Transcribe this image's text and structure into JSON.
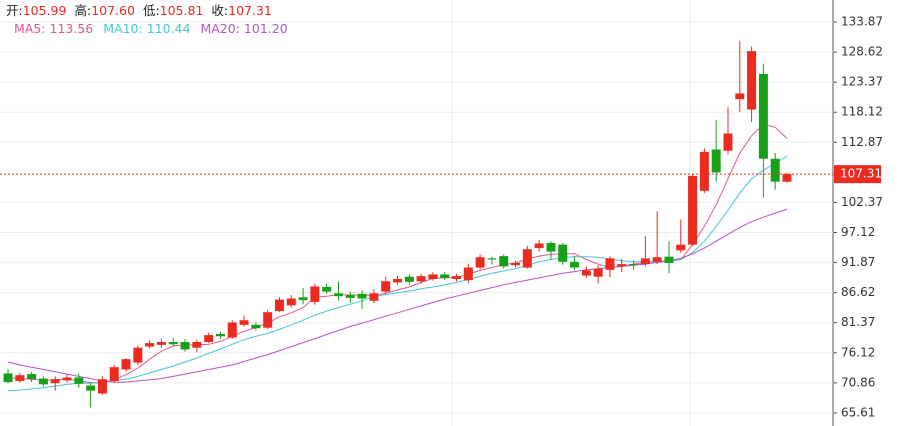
{
  "header": {
    "ohlc": [
      {
        "label": "开:",
        "value": "105.99"
      },
      {
        "label": "高:",
        "value": "107.60"
      },
      {
        "label": "低:",
        "value": "105.81"
      },
      {
        "label": "收:",
        "value": "107.31"
      }
    ],
    "ma": [
      {
        "label": "MA5:",
        "value": "113.56"
      },
      {
        "label": "MA10:",
        "value": "110.44"
      },
      {
        "label": "MA20:",
        "value": "101.20"
      }
    ]
  },
  "chart_data": {
    "type": "candlestick",
    "up_color": "#eb2a20",
    "down_color": "#18a018",
    "ylim": [
      63.33,
      137.72
    ],
    "yticks": [
      133.87,
      128.62,
      123.37,
      118.12,
      112.87,
      102.37,
      97.12,
      91.87,
      86.62,
      81.37,
      76.12,
      70.86,
      65.61
    ],
    "grid": true,
    "last_price": {
      "value": 107.31,
      "label": "107.31"
    },
    "candles": [
      {
        "open": 72.5,
        "high": 73.3,
        "low": 70.8,
        "close": 71.0
      },
      {
        "open": 71.2,
        "high": 72.6,
        "low": 70.9,
        "close": 72.2
      },
      {
        "open": 72.4,
        "high": 72.8,
        "low": 71.0,
        "close": 71.5
      },
      {
        "open": 71.6,
        "high": 72.0,
        "low": 70.2,
        "close": 70.6
      },
      {
        "open": 70.8,
        "high": 72.0,
        "low": 69.5,
        "close": 71.5
      },
      {
        "open": 71.3,
        "high": 72.3,
        "low": 70.9,
        "close": 71.8
      },
      {
        "open": 71.8,
        "high": 72.5,
        "low": 70.0,
        "close": 70.7
      },
      {
        "open": 70.4,
        "high": 70.8,
        "low": 66.6,
        "close": 69.5
      },
      {
        "open": 69.0,
        "high": 72.0,
        "low": 68.8,
        "close": 71.5
      },
      {
        "open": 71.2,
        "high": 74.0,
        "low": 70.8,
        "close": 73.6
      },
      {
        "open": 73.2,
        "high": 75.2,
        "low": 72.8,
        "close": 75.0
      },
      {
        "open": 74.4,
        "high": 77.4,
        "low": 74.0,
        "close": 77.0
      },
      {
        "open": 77.2,
        "high": 78.3,
        "low": 76.9,
        "close": 77.8
      },
      {
        "open": 77.5,
        "high": 78.6,
        "low": 77.0,
        "close": 78.0
      },
      {
        "open": 78.0,
        "high": 78.7,
        "low": 77.2,
        "close": 77.6
      },
      {
        "open": 78.0,
        "high": 78.5,
        "low": 76.3,
        "close": 76.7
      },
      {
        "open": 77.0,
        "high": 78.4,
        "low": 76.2,
        "close": 78.0
      },
      {
        "open": 78.0,
        "high": 79.6,
        "low": 77.8,
        "close": 79.2
      },
      {
        "open": 79.4,
        "high": 79.8,
        "low": 78.5,
        "close": 79.0
      },
      {
        "open": 78.8,
        "high": 81.8,
        "low": 78.5,
        "close": 81.4
      },
      {
        "open": 81.0,
        "high": 82.6,
        "low": 80.7,
        "close": 81.8
      },
      {
        "open": 81.0,
        "high": 81.4,
        "low": 80.0,
        "close": 80.4
      },
      {
        "open": 80.5,
        "high": 83.6,
        "low": 80.2,
        "close": 83.2
      },
      {
        "open": 83.4,
        "high": 85.8,
        "low": 83.2,
        "close": 85.4
      },
      {
        "open": 84.4,
        "high": 86.2,
        "low": 84.0,
        "close": 85.6
      },
      {
        "open": 85.8,
        "high": 87.4,
        "low": 84.6,
        "close": 85.3
      },
      {
        "open": 85.0,
        "high": 88.2,
        "low": 84.5,
        "close": 87.7
      },
      {
        "open": 87.6,
        "high": 88.2,
        "low": 86.4,
        "close": 86.8
      },
      {
        "open": 86.5,
        "high": 88.6,
        "low": 85.2,
        "close": 86.0
      },
      {
        "open": 86.2,
        "high": 86.8,
        "low": 84.8,
        "close": 85.7
      },
      {
        "open": 86.4,
        "high": 87.0,
        "low": 83.8,
        "close": 85.6
      },
      {
        "open": 85.2,
        "high": 87.2,
        "low": 84.8,
        "close": 86.5
      },
      {
        "open": 86.8,
        "high": 89.4,
        "low": 86.5,
        "close": 88.6
      },
      {
        "open": 88.4,
        "high": 89.6,
        "low": 88.0,
        "close": 89.0
      },
      {
        "open": 89.4,
        "high": 89.8,
        "low": 88.0,
        "close": 88.5
      },
      {
        "open": 88.6,
        "high": 89.9,
        "low": 88.2,
        "close": 89.5
      },
      {
        "open": 89.0,
        "high": 90.2,
        "low": 88.7,
        "close": 89.8
      },
      {
        "open": 89.8,
        "high": 90.2,
        "low": 88.8,
        "close": 89.2
      },
      {
        "open": 89.0,
        "high": 89.9,
        "low": 88.6,
        "close": 89.5
      },
      {
        "open": 88.8,
        "high": 91.6,
        "low": 88.3,
        "close": 91.0
      },
      {
        "open": 91.0,
        "high": 93.3,
        "low": 90.7,
        "close": 92.8
      },
      {
        "open": 92.6,
        "high": 92.9,
        "low": 91.5,
        "close": 92.4
      },
      {
        "open": 93.0,
        "high": 93.3,
        "low": 90.8,
        "close": 91.2
      },
      {
        "open": 91.4,
        "high": 92.2,
        "low": 91.0,
        "close": 91.8
      },
      {
        "open": 91.0,
        "high": 94.8,
        "low": 90.8,
        "close": 94.2
      },
      {
        "open": 94.4,
        "high": 95.8,
        "low": 93.8,
        "close": 95.2
      },
      {
        "open": 95.3,
        "high": 95.6,
        "low": 92.4,
        "close": 93.8
      },
      {
        "open": 95.0,
        "high": 95.3,
        "low": 91.5,
        "close": 92.0
      },
      {
        "open": 92.0,
        "high": 93.0,
        "low": 90.5,
        "close": 91.0
      },
      {
        "open": 89.6,
        "high": 91.2,
        "low": 89.2,
        "close": 90.5
      },
      {
        "open": 89.4,
        "high": 91.4,
        "low": 88.2,
        "close": 90.8
      },
      {
        "open": 90.6,
        "high": 93.0,
        "low": 89.3,
        "close": 92.6
      },
      {
        "open": 91.2,
        "high": 92.5,
        "low": 90.2,
        "close": 91.6
      },
      {
        "open": 91.6,
        "high": 92.2,
        "low": 90.6,
        "close": 91.4
      },
      {
        "open": 91.6,
        "high": 96.5,
        "low": 91.2,
        "close": 92.6
      },
      {
        "open": 92.0,
        "high": 100.8,
        "low": 91.6,
        "close": 92.8
      },
      {
        "open": 92.9,
        "high": 95.6,
        "low": 90.0,
        "close": 91.8
      },
      {
        "open": 94.0,
        "high": 99.4,
        "low": 93.6,
        "close": 95.0
      },
      {
        "open": 95.0,
        "high": 107.4,
        "low": 94.8,
        "close": 107.0
      },
      {
        "open": 104.4,
        "high": 111.8,
        "low": 104.0,
        "close": 111.2
      },
      {
        "open": 111.6,
        "high": 116.8,
        "low": 106.0,
        "close": 107.6
      },
      {
        "open": 111.4,
        "high": 119.0,
        "low": 110.8,
        "close": 114.4
      },
      {
        "open": 120.4,
        "high": 130.6,
        "low": 118.2,
        "close": 121.4
      },
      {
        "open": 118.6,
        "high": 129.6,
        "low": 116.4,
        "close": 128.8
      },
      {
        "open": 124.8,
        "high": 126.6,
        "low": 103.2,
        "close": 110.0
      },
      {
        "open": 110.0,
        "high": 111.0,
        "low": 104.6,
        "close": 106.0
      },
      {
        "open": 105.99,
        "high": 107.6,
        "low": 105.81,
        "close": 107.31
      }
    ],
    "series": [
      {
        "name": "MA5",
        "color": "#e8568f",
        "values": [
          71.8,
          71.6,
          71.5,
          71.3,
          71.4,
          71.5,
          71.2,
          70.9,
          70.9,
          71.4,
          72.3,
          73.4,
          75.0,
          76.4,
          77.3,
          77.5,
          77.5,
          77.6,
          78.1,
          79.0,
          79.9,
          80.5,
          81.3,
          82.4,
          83.1,
          84.0,
          85.8,
          86.0,
          86.3,
          86.2,
          86.2,
          86.1,
          86.5,
          87.1,
          87.6,
          88.4,
          89.1,
          89.2,
          89.3,
          89.8,
          90.5,
          91.0,
          91.5,
          91.8,
          92.5,
          93.0,
          93.3,
          93.4,
          93.4,
          92.4,
          91.6,
          91.0,
          91.2,
          91.6,
          91.9,
          92.2,
          92.0,
          92.4,
          95.0,
          98.2,
          102.0,
          106.5,
          111.0,
          114.0,
          116.0,
          115.5,
          113.56
        ]
      },
      {
        "name": "MA10",
        "color": "#45c6d6",
        "values": [
          69.5,
          69.6,
          69.8,
          70.0,
          70.3,
          70.6,
          70.8,
          70.8,
          70.9,
          71.3,
          71.5,
          72.0,
          72.6,
          73.2,
          73.8,
          74.5,
          75.2,
          76.0,
          76.8,
          77.6,
          78.4,
          79.0,
          79.5,
          80.2,
          81.0,
          81.8,
          82.7,
          83.4,
          84.0,
          84.6,
          85.2,
          85.9,
          86.3,
          86.6,
          86.9,
          87.3,
          87.6,
          88.0,
          88.4,
          88.9,
          89.5,
          90.0,
          90.4,
          90.8,
          91.4,
          92.0,
          92.4,
          92.7,
          92.9,
          92.9,
          92.8,
          92.5,
          92.2,
          92.0,
          92.0,
          92.0,
          92.0,
          92.4,
          93.6,
          95.6,
          98.2,
          101.0,
          104.0,
          106.5,
          108.0,
          109.2,
          110.44
        ]
      },
      {
        "name": "MA20",
        "color": "#b056c8",
        "values": [
          74.5,
          74.0,
          73.6,
          73.2,
          72.8,
          72.4,
          72.0,
          71.6,
          71.2,
          71.0,
          71.0,
          71.2,
          71.4,
          71.6,
          72.0,
          72.4,
          72.8,
          73.2,
          73.6,
          74.0,
          74.6,
          75.2,
          75.8,
          76.5,
          77.2,
          77.9,
          78.6,
          79.3,
          80.0,
          80.7,
          81.3,
          81.9,
          82.5,
          83.1,
          83.7,
          84.3,
          84.9,
          85.5,
          86.0,
          86.5,
          87.0,
          87.5,
          88.0,
          88.4,
          88.8,
          89.2,
          89.6,
          90.0,
          90.3,
          90.6,
          90.8,
          91.0,
          91.2,
          91.4,
          91.6,
          91.9,
          92.2,
          92.6,
          93.4,
          94.4,
          95.6,
          96.8,
          98.0,
          99.0,
          99.8,
          100.5,
          101.2
        ]
      }
    ]
  }
}
